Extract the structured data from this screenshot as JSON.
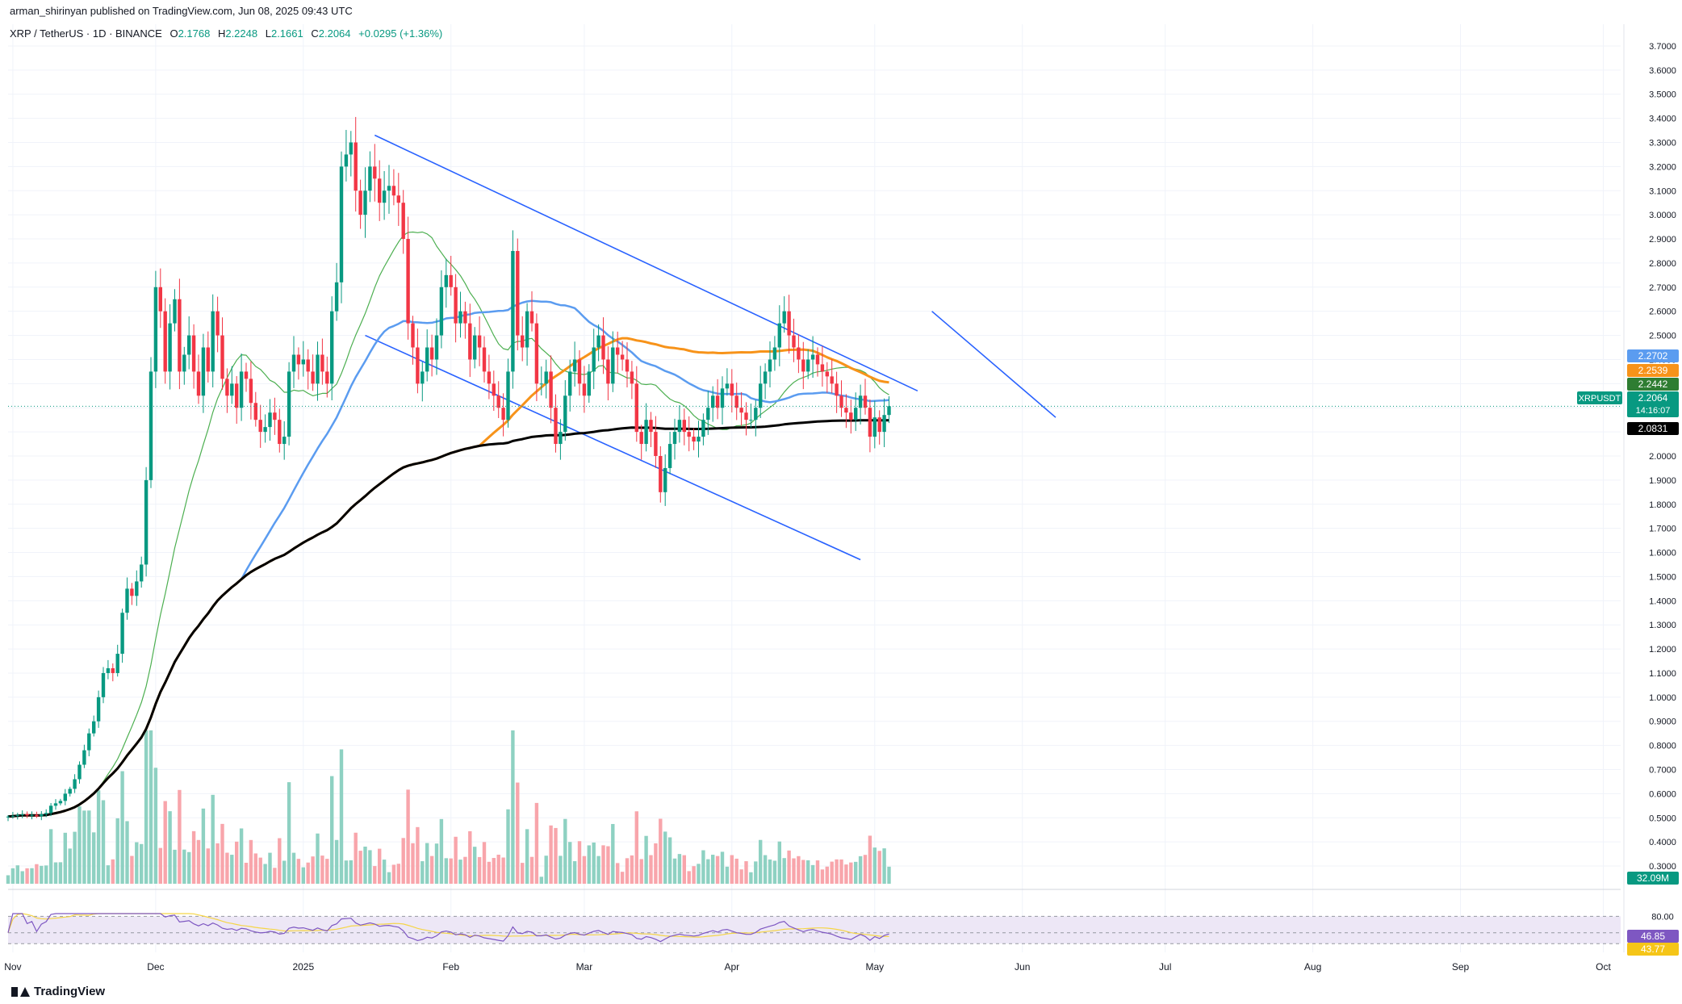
{
  "publish_line": {
    "author": "arman_shirinyan",
    "text": "published on TradingView.com, Jun 08, 2025 09:43 UTC"
  },
  "legend": {
    "symbol": "XRP / TetherUS · 1D · BINANCE",
    "open_label": "O",
    "open": "2.1768",
    "high_label": "H",
    "high": "2.2248",
    "low_label": "L",
    "low": "2.1661",
    "close_label": "C",
    "close": "2.2064",
    "change": "+0.0295 (+1.36%)"
  },
  "brand": {
    "name": "TradingView"
  },
  "colors": {
    "up": "#089981",
    "down": "#f23645",
    "vol_up": "#8ed1c2",
    "vol_down": "#f8a5ab",
    "ma_short": "#4caf50",
    "ma_mid": "#5b9cf0",
    "ma_long": "#f7931a",
    "ma_200": "#000000",
    "trend": "#2962ff",
    "rsi": "#7e57c2",
    "rsi_ma": "#f5d547",
    "rsi_band": "#ede7f6",
    "grid": "#f0f3fa"
  },
  "chart_data": {
    "type": "candlestick",
    "symbol": "XRPUSDT",
    "price_axis": {
      "min": 0.25,
      "max": 3.75,
      "ticks": [
        "3.7000",
        "3.6000",
        "3.5000",
        "3.4000",
        "3.3000",
        "3.2000",
        "3.1000",
        "3.0000",
        "2.9000",
        "2.8000",
        "2.7000",
        "2.6000",
        "2.5000",
        "2.4000",
        "2.3000",
        "2.2000",
        "2.1000",
        "2.0000",
        "1.9000",
        "1.8000",
        "1.7000",
        "1.6000",
        "1.5000",
        "1.4000",
        "1.3000",
        "1.2000",
        "1.1000",
        "1.0000",
        "0.9000",
        "0.8000",
        "0.7000",
        "0.6000",
        "0.5000",
        "0.4000",
        "0.3000"
      ]
    },
    "time_axis": [
      "Nov",
      "Dec",
      "2025",
      "Feb",
      "Mar",
      "Apr",
      "May",
      "Jun",
      "Jul",
      "Aug",
      "Sep",
      "Oct"
    ],
    "price_labels": [
      {
        "value": 2.2702,
        "text": "2.2702",
        "color": "#5b9cf0"
      },
      {
        "value": 2.2539,
        "text": "2.2539",
        "color": "#f7931a"
      },
      {
        "value": 2.2442,
        "text": "2.2442",
        "color": "#2e7d32"
      },
      {
        "value": 2.2064,
        "text": "2.2064",
        "sub": "14:16:07",
        "color": "#089981",
        "symbol": "XRPUSDT"
      },
      {
        "value": 2.0831,
        "text": "2.0831",
        "color": "#000000"
      }
    ],
    "volume_label": "32.09M",
    "rsi": {
      "upper": 80,
      "upper_text": "80.00",
      "value_text": "46.85",
      "ma_text": "43.77"
    },
    "trend_lines": [
      {
        "from": [
          "2025-01-16",
          3.33
        ],
        "to": [
          "2025-05-10",
          2.27
        ]
      },
      {
        "from": [
          "2025-01-14",
          2.5
        ],
        "to": [
          "2025-04-28",
          1.57
        ]
      },
      {
        "from": [
          "2025-05-13",
          2.6
        ],
        "to": [
          "2025-06-08",
          2.16
        ]
      }
    ],
    "series": [
      {
        "name": "",
        "kind": "ohlc-daily",
        "start": "2024-10-31",
        "close": [
          0.505,
          0.508,
          0.512,
          0.515,
          0.51,
          0.512,
          0.506,
          0.515,
          0.52,
          0.55,
          0.56,
          0.57,
          0.6,
          0.62,
          0.66,
          0.72,
          0.78,
          0.85,
          0.9,
          1.0,
          1.1,
          1.12,
          1.1,
          1.18,
          1.35,
          1.45,
          1.42,
          1.48,
          1.55,
          1.9,
          2.35,
          2.7,
          2.6,
          2.35,
          2.55,
          2.65,
          2.35,
          2.42,
          2.5,
          2.35,
          2.25,
          2.45,
          2.35,
          2.6,
          2.5,
          2.32,
          2.25,
          2.3,
          2.2,
          2.35,
          2.32,
          2.22,
          2.15,
          2.1,
          2.12,
          2.18,
          2.15,
          2.05,
          2.08,
          2.35,
          2.42,
          2.38,
          2.4,
          2.35,
          2.3,
          2.42,
          2.35,
          2.3,
          2.6,
          2.72,
          3.2,
          3.25,
          3.3,
          3.1,
          3.0,
          3.1,
          3.2,
          3.15,
          3.05,
          3.1,
          3.12,
          3.08,
          3.05,
          2.9,
          2.55,
          2.45,
          2.3,
          2.35,
          2.45,
          2.4,
          2.5,
          2.7,
          2.75,
          2.7,
          2.55,
          2.6,
          2.55,
          2.4,
          2.5,
          2.45,
          2.35,
          2.3,
          2.25,
          2.2,
          2.15,
          2.35,
          2.85,
          2.5,
          2.45,
          2.6,
          2.55,
          2.3,
          2.3,
          2.35,
          2.2,
          2.05,
          2.1,
          2.25,
          2.35,
          2.4,
          2.3,
          2.25,
          2.35,
          2.45,
          2.5,
          2.4,
          2.3,
          2.45,
          2.42,
          2.4,
          2.35,
          2.3,
          2.1,
          2.05,
          2.15,
          2.1,
          2.0,
          1.85,
          1.95,
          2.05,
          2.1,
          2.15,
          2.1,
          2.08,
          2.06,
          2.08,
          2.15,
          2.2,
          2.25,
          2.2,
          2.28,
          2.3,
          2.25,
          2.2,
          2.18,
          2.15,
          2.15,
          2.2,
          2.3,
          2.35,
          2.4,
          2.45,
          2.55,
          2.6,
          2.5,
          2.45,
          2.4,
          2.35,
          2.4,
          2.42,
          2.38,
          2.35,
          2.33,
          2.3,
          2.25,
          2.2,
          2.18,
          2.15,
          2.2,
          2.25,
          2.2,
          2.08,
          2.16,
          2.1,
          2.17,
          2.2064
        ]
      },
      {
        "name": "",
        "kind": "sma-short"
      },
      {
        "name": "",
        "kind": "sma-mid"
      },
      {
        "name": "",
        "kind": "sma-long"
      },
      {
        "name": "",
        "kind": "sma-200"
      }
    ]
  }
}
